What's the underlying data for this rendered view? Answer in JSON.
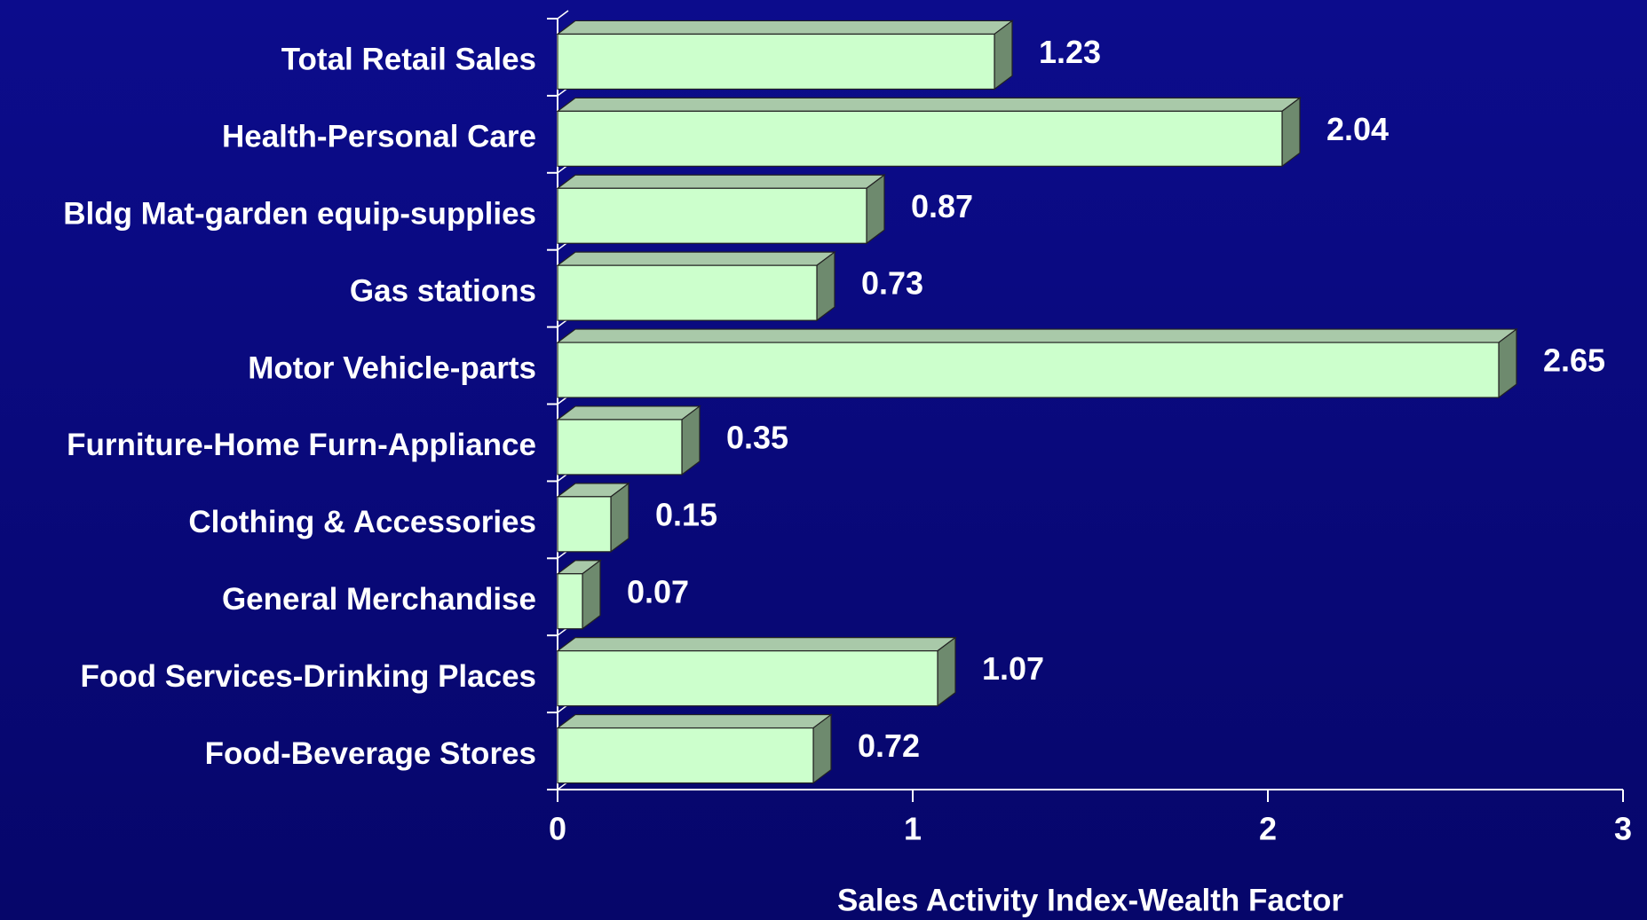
{
  "chart_data": {
    "type": "bar",
    "orientation": "horizontal",
    "x_label": "Sales Activity Index-Wealth Factor",
    "categories": [
      "Total Retail Sales",
      "Health-Personal Care",
      "Bldg Mat-garden equip-supplies",
      "Gas stations",
      "Motor Vehicle-parts",
      "Furniture-Home Furn-Appliance",
      "Clothing & Accessories",
      "General Merchandise",
      "Food Services-Drinking Places",
      "Food-Beverage Stores"
    ],
    "values": [
      1.23,
      2.04,
      0.87,
      0.73,
      2.65,
      0.35,
      0.15,
      0.07,
      1.07,
      0.72
    ],
    "color": "#ccffcc",
    "xlim": [
      0,
      3
    ],
    "xticks": [
      0,
      1,
      2,
      3
    ],
    "grid": false
  }
}
